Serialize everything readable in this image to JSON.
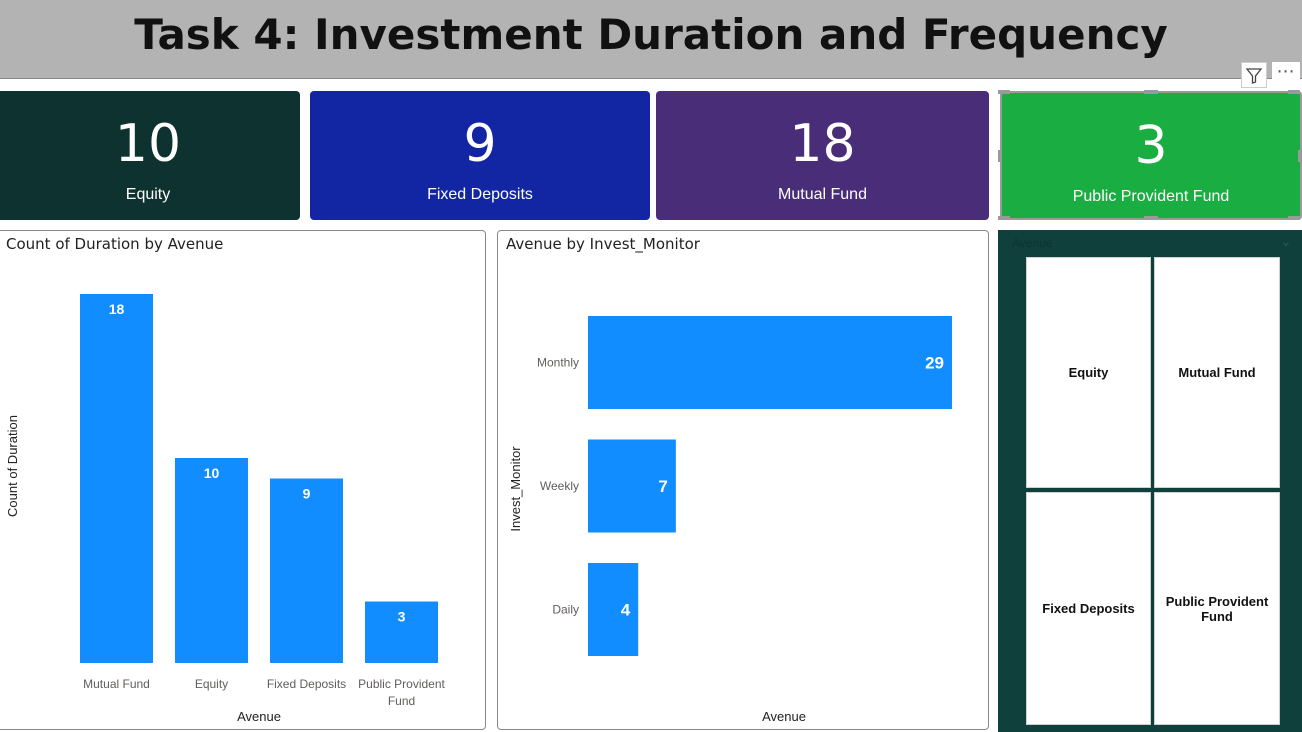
{
  "header": {
    "title": "Task 4: Investment Duration and Frequency"
  },
  "toolbar": {
    "filter_icon": "filter-icon",
    "more_icon": "more-options-icon",
    "more_glyph": "⋯"
  },
  "cards": [
    {
      "value": "10",
      "label": "Equity",
      "color": "#0e3230"
    },
    {
      "value": "9",
      "label": "Fixed Deposits",
      "color": "#1225a3"
    },
    {
      "value": "18",
      "label": "Mutual Fund",
      "color": "#4a2d78"
    },
    {
      "value": "3",
      "label": "Public Provident Fund",
      "color": "#1aad41"
    }
  ],
  "colors": {
    "bar": "#118dff",
    "slicer_bg": "#0f403c",
    "title_bar": "#b3b3b3"
  },
  "slicer": {
    "header": "Avenue",
    "chevron": "⌄",
    "items": [
      "Equity",
      "Mutual Fund",
      "Fixed Deposits",
      "Public Provident Fund"
    ]
  },
  "chart_data": [
    {
      "type": "bar",
      "title": "Count of Duration by Avenue",
      "xlabel": "Avenue",
      "ylabel": "Count of Duration",
      "categories": [
        "Mutual Fund",
        "Equity",
        "Fixed Deposits",
        "Public Provident Fund"
      ],
      "values": [
        18,
        10,
        9,
        3
      ],
      "ylim": [
        0,
        18
      ],
      "grid": false,
      "data_labels": true
    },
    {
      "type": "bar",
      "orientation": "horizontal",
      "title": "Avenue by Invest_Monitor",
      "xlabel": "Avenue",
      "ylabel": "Invest_Monitor",
      "categories": [
        "Monthly",
        "Weekly",
        "Daily"
      ],
      "values": [
        29,
        7,
        4
      ],
      "xlim": [
        0,
        29
      ],
      "grid": false,
      "data_labels": true
    }
  ]
}
